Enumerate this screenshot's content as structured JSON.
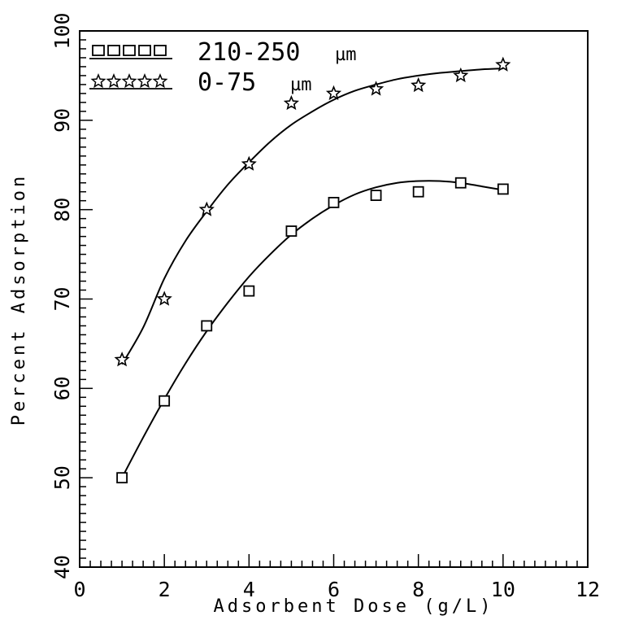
{
  "chart_data": {
    "type": "scatter",
    "xlabel": "Adsorbent Dose (g/L)",
    "ylabel": "Percent Adsorption",
    "xlim": [
      0,
      12
    ],
    "ylim": [
      40,
      100
    ],
    "x_ticks": [
      "0",
      "2",
      "4",
      "6",
      "8",
      "10",
      "12"
    ],
    "y_ticks": [
      "40",
      "50",
      "60",
      "70",
      "80",
      "90",
      "100"
    ],
    "legend_position": "top-left",
    "grid": false,
    "series": [
      {
        "name": "210-250",
        "unit": "µm",
        "marker": "square",
        "x": [
          1,
          2,
          3,
          4,
          5,
          6,
          7,
          8,
          9,
          10
        ],
        "y": [
          50.0,
          58.6,
          67.0,
          70.9,
          77.6,
          80.8,
          81.6,
          82.0,
          83.0,
          82.3
        ],
        "fit": {
          "x": [
            1,
            1.5,
            2,
            2.5,
            3,
            3.5,
            4,
            4.5,
            5,
            5.5,
            6,
            6.5,
            7,
            7.5,
            8,
            8.5,
            9,
            9.5,
            10
          ],
          "y": [
            50.0,
            54.5,
            58.8,
            62.8,
            66.4,
            69.6,
            72.5,
            75.0,
            77.2,
            79.0,
            80.5,
            81.7,
            82.5,
            83.0,
            83.2,
            83.2,
            83.0,
            82.6,
            82.2
          ]
        }
      },
      {
        "name": "0-75",
        "unit": "µm",
        "marker": "star",
        "x": [
          1,
          2,
          3,
          4,
          5,
          6,
          7,
          8,
          9,
          10
        ],
        "y": [
          63.2,
          70.0,
          80.0,
          85.1,
          91.9,
          93.0,
          93.5,
          93.9,
          95.0,
          96.2
        ],
        "fit": {
          "x": [
            1,
            1.5,
            2,
            2.5,
            3,
            3.5,
            4,
            4.5,
            5,
            5.5,
            6,
            6.5,
            7,
            7.5,
            8,
            8.5,
            9,
            9.5,
            10
          ],
          "y": [
            62.7,
            66.8,
            72.3,
            76.5,
            79.8,
            82.8,
            85.3,
            87.6,
            89.5,
            91.0,
            92.3,
            93.3,
            94.0,
            94.6,
            95.0,
            95.3,
            95.5,
            95.7,
            95.8
          ]
        }
      }
    ]
  }
}
